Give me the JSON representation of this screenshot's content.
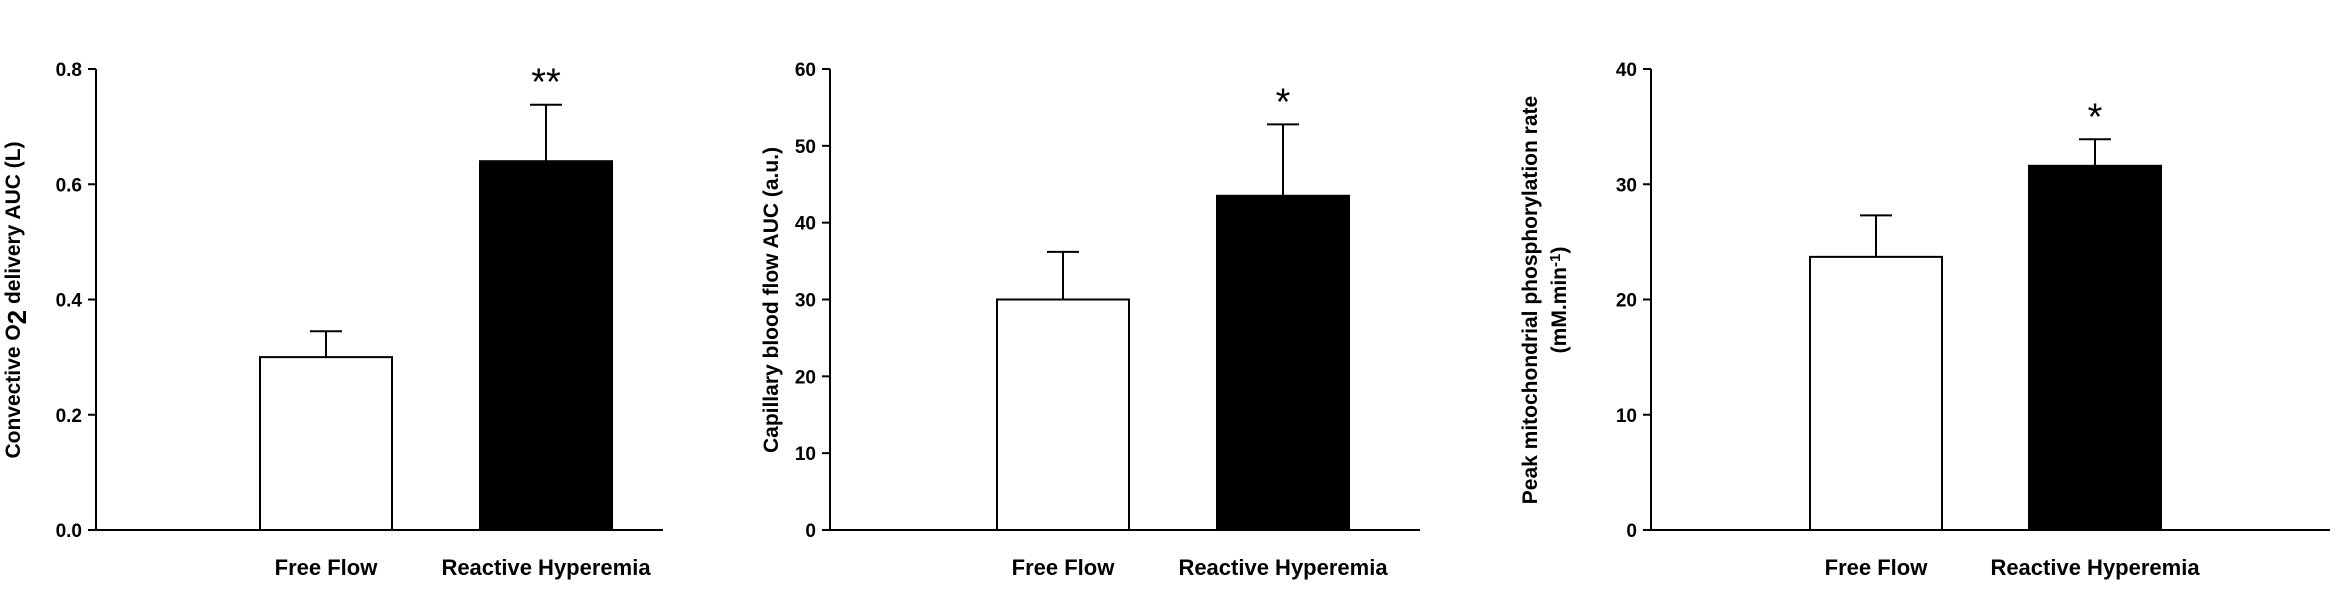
{
  "chart_data": [
    {
      "type": "bar",
      "categories": [
        "Free Flow",
        "Reactive Hyperemia"
      ],
      "values": [
        0.3,
        0.64
      ],
      "error": [
        0.045,
        0.098
      ],
      "significance": [
        "",
        "**"
      ],
      "ylabel_parts": [
        {
          "text": "Convective O",
          "sub": false
        },
        {
          "text": "2",
          "sub": true
        },
        {
          "text": " delivery AUC (L)",
          "sub": false
        }
      ],
      "ylim": [
        0,
        0.8
      ],
      "yticks": [
        0.0,
        0.2,
        0.4,
        0.6,
        0.8
      ],
      "ytick_labels": [
        "0.0",
        "0.2",
        "0.4",
        "0.6",
        "0.8"
      ],
      "bar_fills": [
        "#ffffff",
        "#000000"
      ],
      "grid": false
    },
    {
      "type": "bar",
      "categories": [
        "Free Flow",
        "Reactive Hyperemia"
      ],
      "values": [
        30,
        43.5
      ],
      "error": [
        6.2,
        9.3
      ],
      "significance": [
        "",
        "*"
      ],
      "ylabel_parts": [
        {
          "text": "Capillary blood flow AUC (a.u.)",
          "sub": false
        }
      ],
      "ylim": [
        0,
        60
      ],
      "yticks": [
        0,
        10,
        20,
        30,
        40,
        50,
        60
      ],
      "ytick_labels": [
        "0",
        "10",
        "20",
        "30",
        "40",
        "50",
        "60"
      ],
      "bar_fills": [
        "#ffffff",
        "#000000"
      ],
      "grid": false
    },
    {
      "type": "bar",
      "categories": [
        "Free Flow",
        "Reactive Hyperemia"
      ],
      "values": [
        23.7,
        31.6
      ],
      "error": [
        3.6,
        2.3
      ],
      "significance": [
        "",
        "*"
      ],
      "ylabel_parts": [
        {
          "text": "Peak mitochondrial phosphorylation rate",
          "sub": false
        }
      ],
      "ylabel2_parts": [
        {
          "text": "(mM.min",
          "sup": false
        },
        {
          "text": "-1",
          "sup": true
        },
        {
          "text": ")",
          "sup": false
        }
      ],
      "ylim": [
        0,
        40
      ],
      "yticks": [
        0,
        10,
        20,
        30,
        40
      ],
      "ytick_labels": [
        "0",
        "10",
        "20",
        "30",
        "40"
      ],
      "bar_fills": [
        "#ffffff",
        "#000000"
      ],
      "grid": false
    }
  ]
}
